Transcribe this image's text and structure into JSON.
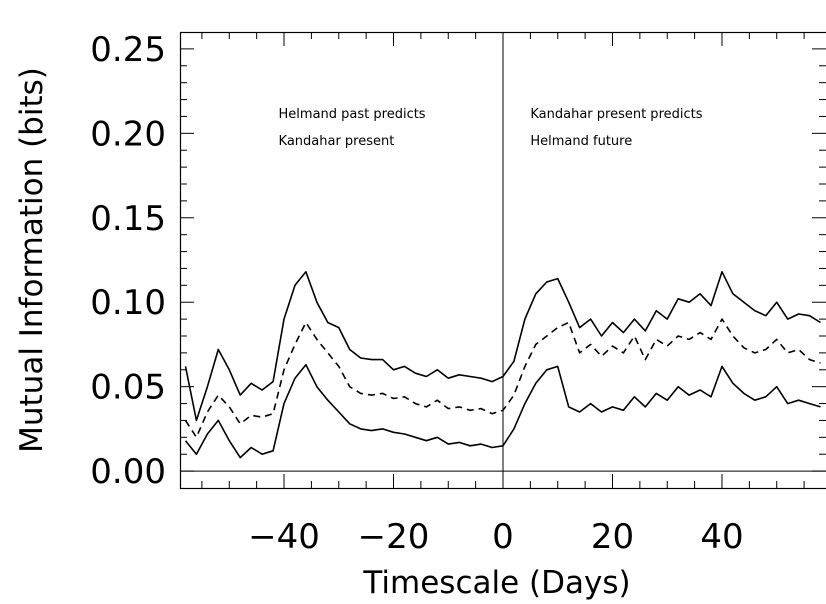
{
  "chart_data": {
    "type": "line",
    "xlabel": "Timescale (Days)",
    "ylabel": "Mutual Information (bits)",
    "xlim": [
      -59,
      59
    ],
    "ylim": [
      -0.01,
      0.26
    ],
    "x_ticks": [
      -40,
      -20,
      0,
      20,
      40
    ],
    "x_tick_labels": [
      "−40",
      "−20",
      "0",
      "20",
      "40"
    ],
    "y_ticks": [
      0.0,
      0.05,
      0.1,
      0.15,
      0.2,
      0.25
    ],
    "y_tick_labels": [
      "0.00",
      "0.05",
      "0.10",
      "0.15",
      "0.20",
      "0.25"
    ],
    "grid": false,
    "legend": "none",
    "reference_lines": {
      "horizontal_y": 0.0,
      "vertical_x": 0
    },
    "annotations": [
      {
        "lines": [
          "Helmand past predicts",
          "Kandahar present"
        ],
        "x": -41,
        "y": [
          0.209,
          0.193
        ]
      },
      {
        "lines": [
          "Kandahar present predicts",
          "Helmand future"
        ],
        "x": 5,
        "y": [
          0.209,
          0.193
        ]
      }
    ],
    "x": [
      -58,
      -56,
      -54,
      -52,
      -50,
      -48,
      -46,
      -44,
      -42,
      -40,
      -38,
      -36,
      -34,
      -32,
      -30,
      -28,
      -26,
      -24,
      -22,
      -20,
      -18,
      -16,
      -14,
      -12,
      -10,
      -8,
      -6,
      -4,
      -2,
      0,
      2,
      4,
      6,
      8,
      10,
      12,
      14,
      16,
      18,
      20,
      22,
      24,
      26,
      28,
      30,
      32,
      34,
      36,
      38,
      40,
      42,
      44,
      46,
      48,
      50,
      52,
      54,
      56,
      58
    ],
    "series": [
      {
        "style": "solid",
        "values": [
          0.062,
          0.03,
          0.05,
          0.072,
          0.06,
          0.045,
          0.052,
          0.048,
          0.053,
          0.09,
          0.11,
          0.118,
          0.1,
          0.088,
          0.085,
          0.072,
          0.067,
          0.066,
          0.066,
          0.06,
          0.062,
          0.058,
          0.056,
          0.06,
          0.055,
          0.057,
          0.056,
          0.055,
          0.053,
          0.056,
          0.065,
          0.09,
          0.105,
          0.112,
          0.114,
          0.1,
          0.085,
          0.09,
          0.08,
          0.088,
          0.082,
          0.09,
          0.083,
          0.095,
          0.09,
          0.102,
          0.1,
          0.105,
          0.098,
          0.118,
          0.105,
          0.1,
          0.095,
          0.092,
          0.1,
          0.09,
          0.093,
          0.092,
          0.088
        ]
      },
      {
        "style": "dashed",
        "values": [
          0.03,
          0.02,
          0.035,
          0.045,
          0.038,
          0.028,
          0.033,
          0.032,
          0.034,
          0.06,
          0.075,
          0.088,
          0.078,
          0.07,
          0.062,
          0.05,
          0.046,
          0.045,
          0.046,
          0.043,
          0.044,
          0.04,
          0.038,
          0.042,
          0.037,
          0.038,
          0.036,
          0.037,
          0.034,
          0.036,
          0.045,
          0.062,
          0.075,
          0.08,
          0.085,
          0.088,
          0.07,
          0.075,
          0.068,
          0.074,
          0.07,
          0.08,
          0.066,
          0.078,
          0.074,
          0.08,
          0.078,
          0.082,
          0.078,
          0.09,
          0.08,
          0.073,
          0.07,
          0.072,
          0.078,
          0.07,
          0.072,
          0.066,
          0.064
        ]
      },
      {
        "style": "solid",
        "values": [
          0.018,
          0.01,
          0.022,
          0.03,
          0.018,
          0.008,
          0.014,
          0.01,
          0.012,
          0.04,
          0.055,
          0.063,
          0.05,
          0.042,
          0.035,
          0.028,
          0.025,
          0.024,
          0.025,
          0.023,
          0.022,
          0.02,
          0.018,
          0.02,
          0.016,
          0.017,
          0.015,
          0.016,
          0.014,
          0.015,
          0.025,
          0.04,
          0.052,
          0.06,
          0.062,
          0.038,
          0.035,
          0.04,
          0.035,
          0.038,
          0.036,
          0.044,
          0.038,
          0.046,
          0.042,
          0.05,
          0.045,
          0.048,
          0.044,
          0.062,
          0.052,
          0.046,
          0.042,
          0.044,
          0.05,
          0.04,
          0.042,
          0.04,
          0.038
        ]
      }
    ]
  }
}
